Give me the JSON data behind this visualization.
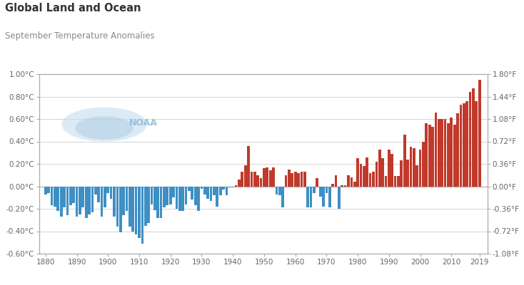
{
  "title": "Global Land and Ocean",
  "subtitle": "September Temperature Anomalies",
  "years": [
    1880,
    1881,
    1882,
    1883,
    1884,
    1885,
    1886,
    1887,
    1888,
    1889,
    1890,
    1891,
    1892,
    1893,
    1894,
    1895,
    1896,
    1897,
    1898,
    1899,
    1900,
    1901,
    1902,
    1903,
    1904,
    1905,
    1906,
    1907,
    1908,
    1909,
    1910,
    1911,
    1912,
    1913,
    1914,
    1915,
    1916,
    1917,
    1918,
    1919,
    1920,
    1921,
    1922,
    1923,
    1924,
    1925,
    1926,
    1927,
    1928,
    1929,
    1930,
    1931,
    1932,
    1933,
    1934,
    1935,
    1936,
    1937,
    1938,
    1939,
    1940,
    1941,
    1942,
    1943,
    1944,
    1945,
    1946,
    1947,
    1948,
    1949,
    1950,
    1951,
    1952,
    1953,
    1954,
    1955,
    1956,
    1957,
    1958,
    1959,
    1960,
    1961,
    1962,
    1963,
    1964,
    1965,
    1966,
    1967,
    1968,
    1969,
    1970,
    1971,
    1972,
    1973,
    1974,
    1975,
    1976,
    1977,
    1978,
    1979,
    1980,
    1981,
    1982,
    1983,
    1984,
    1985,
    1986,
    1987,
    1988,
    1989,
    1990,
    1991,
    1992,
    1993,
    1994,
    1995,
    1996,
    1997,
    1998,
    1999,
    2000,
    2001,
    2002,
    2003,
    2004,
    2005,
    2006,
    2007,
    2008,
    2009,
    2010,
    2011,
    2012,
    2013,
    2014,
    2015,
    2016,
    2017,
    2018,
    2019
  ],
  "anomalies": [
    -0.07,
    -0.06,
    -0.17,
    -0.18,
    -0.22,
    -0.27,
    -0.19,
    -0.26,
    -0.17,
    -0.15,
    -0.27,
    -0.25,
    -0.19,
    -0.28,
    -0.25,
    -0.23,
    -0.07,
    -0.14,
    -0.27,
    -0.19,
    -0.06,
    -0.11,
    -0.27,
    -0.36,
    -0.41,
    -0.26,
    -0.22,
    -0.36,
    -0.4,
    -0.43,
    -0.46,
    -0.51,
    -0.35,
    -0.33,
    -0.16,
    -0.21,
    -0.28,
    -0.28,
    -0.19,
    -0.17,
    -0.16,
    -0.1,
    -0.2,
    -0.22,
    -0.22,
    -0.16,
    -0.04,
    -0.12,
    -0.17,
    -0.22,
    -0.02,
    -0.07,
    -0.11,
    -0.13,
    -0.08,
    -0.18,
    -0.08,
    -0.03,
    -0.08,
    -0.01,
    -0.01,
    0.01,
    0.06,
    0.13,
    0.19,
    0.36,
    0.13,
    0.13,
    0.1,
    0.07,
    0.16,
    0.17,
    0.14,
    0.17,
    -0.07,
    -0.08,
    -0.19,
    0.1,
    0.15,
    0.12,
    0.13,
    0.12,
    0.13,
    0.13,
    -0.19,
    -0.19,
    -0.06,
    0.07,
    -0.09,
    -0.18,
    -0.06,
    -0.19,
    0.02,
    0.1,
    -0.2,
    0.01,
    0.01,
    0.1,
    0.08,
    0.04,
    0.25,
    0.2,
    0.18,
    0.26,
    0.12,
    0.13,
    0.22,
    0.33,
    0.25,
    0.09,
    0.33,
    0.29,
    0.09,
    0.09,
    0.23,
    0.46,
    0.24,
    0.35,
    0.34,
    0.19,
    0.33,
    0.4,
    0.56,
    0.55,
    0.53,
    0.66,
    0.6,
    0.6,
    0.6,
    0.56,
    0.61,
    0.55,
    0.65,
    0.73,
    0.74,
    0.76,
    0.84,
    0.87,
    0.76,
    0.95
  ],
  "color_positive": "#C0392B",
  "color_negative": "#3d8fc4",
  "bgcolor": "#ffffff",
  "grid_color": "#cccccc",
  "ylim_celsius": [
    -0.6,
    1.0
  ],
  "yticks_celsius": [
    -0.6,
    -0.4,
    -0.2,
    0.0,
    0.2,
    0.4,
    0.6,
    0.8,
    1.0
  ],
  "yticks_fahrenheit": [
    -1.08,
    -0.72,
    -0.36,
    0.0,
    0.36,
    0.72,
    1.08,
    1.44,
    1.8
  ],
  "xlabel_ticks": [
    1880,
    1890,
    1900,
    1910,
    1920,
    1930,
    1940,
    1950,
    1960,
    1970,
    1980,
    1990,
    2000,
    2010,
    2019
  ],
  "title_color": "#333333",
  "subtitle_color": "#888888",
  "tick_color": "#666666",
  "spine_color": "#aaaaaa"
}
